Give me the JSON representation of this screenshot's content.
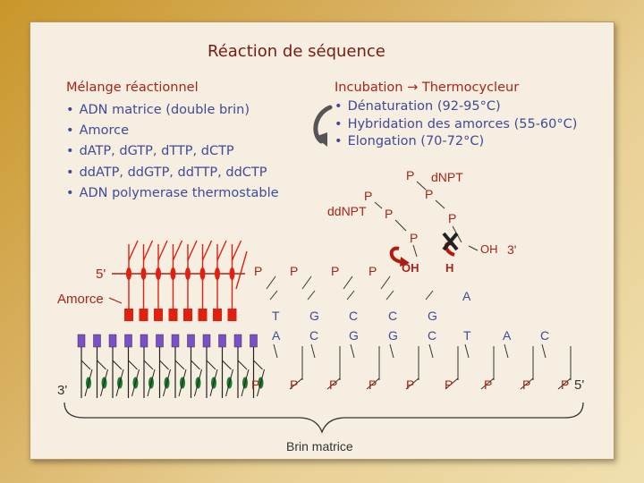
{
  "title": "Réaction de séquence",
  "mix": {
    "heading": "Mélange réactionnel",
    "items": [
      "ADN matrice (double brin)",
      "Amorce",
      "dATP, dGTP, dTTP, dCTP",
      "ddATP, ddGTP, ddTTP, ddCTP",
      "ADN polymerase thermostable"
    ]
  },
  "incubation": {
    "heading": "Incubation → Thermocycleur",
    "items": [
      "Dénaturation (92-95°C)",
      "Hybridation des amorces (55-60°C)",
      "Elongation (70-72°C)"
    ]
  },
  "diagram": {
    "label_5prime_top": "5'",
    "label_amorce": "Amorce",
    "label_3prime_bottom": "3'",
    "label_5prime_bottom": "5'",
    "label_3prime_top": "3'",
    "label_dNPT": "dNPT",
    "label_ddNPT": "ddNPT",
    "label_OH_free": "OH",
    "label_OH_growing": "OH",
    "label_H": "H",
    "label_A_incoming": "A",
    "phosphate": "P",
    "top_bases": [
      "T",
      "G",
      "C",
      "C",
      "G"
    ],
    "bottom_bases": [
      "A",
      "C",
      "G",
      "G",
      "C",
      "T",
      "A",
      "C"
    ],
    "strand_label": "Brin matrice"
  },
  "colors": {
    "dark_red": "#7a1a12",
    "red": "#a82418",
    "blue": "#3f4a98",
    "bright_red": "#e02010",
    "purple": "#7a50c8",
    "green": "#1c7a2c"
  }
}
